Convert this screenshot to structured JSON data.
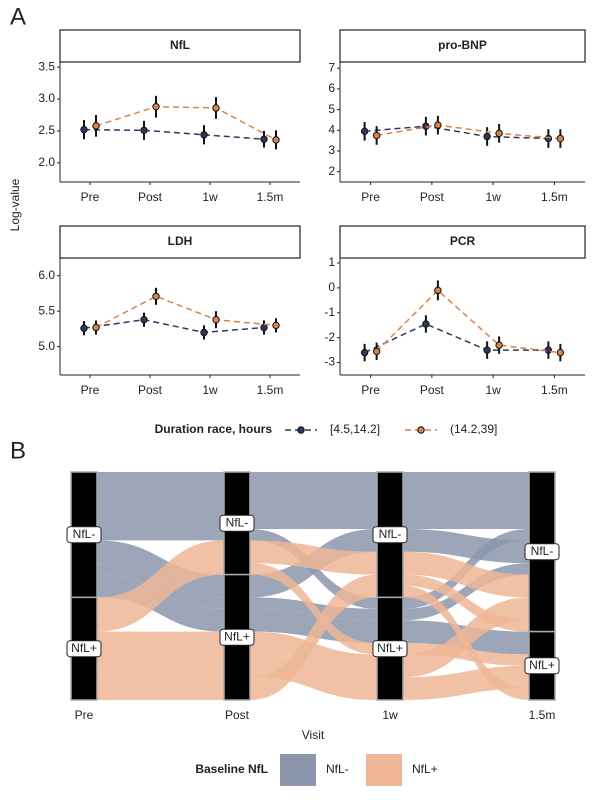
{
  "panel_labels": [
    "A",
    "B"
  ],
  "chart_data": [
    {
      "type": "facet-line",
      "y_label": "Log-value",
      "categories": [
        "Pre",
        "Post",
        "1w",
        "1.5m"
      ],
      "legend_title": "Duration race, hours",
      "series": [
        {
          "name": "[4.5,14.2]",
          "color": "#2b3a5c"
        },
        {
          "name": "(14.2,39]",
          "color": "#d9824a"
        }
      ],
      "facets": [
        {
          "title": "NfL",
          "ylim": [
            1.7,
            3.58
          ],
          "yticks": [
            {
              "value": 2,
              "label": "2.0"
            },
            2.5,
            {
              "value": 3,
              "label": "3.0"
            },
            3.5
          ],
          "values": [
            [
              2.52,
              2.51,
              2.44,
              2.37
            ],
            [
              2.58,
              2.88,
              2.86,
              2.36
            ]
          ],
          "errors": [
            [
              0.15,
              0.15,
              0.15,
              0.13
            ],
            [
              0.17,
              0.17,
              0.17,
              0.15
            ]
          ]
        },
        {
          "title": "pro-BNP",
          "ylim": [
            1.5,
            7.3
          ],
          "yticks": [
            2,
            3,
            4,
            5,
            6,
            7
          ],
          "values": [
            [
              3.95,
              4.2,
              3.7,
              3.6
            ],
            [
              3.75,
              4.25,
              3.85,
              3.6
            ]
          ],
          "errors": [
            [
              0.45,
              0.45,
              0.45,
              0.45
            ],
            [
              0.45,
              0.45,
              0.45,
              0.45
            ]
          ]
        },
        {
          "title": "LDH",
          "ylim": [
            4.6,
            6.25
          ],
          "yticks": [
            {
              "value": 5,
              "label": "5.0"
            },
            5.5,
            {
              "value": 6,
              "label": "6.0"
            }
          ],
          "values": [
            [
              5.26,
              5.38,
              5.2,
              5.27
            ],
            [
              5.27,
              5.71,
              5.38,
              5.3
            ]
          ],
          "errors": [
            [
              0.1,
              0.1,
              0.1,
              0.1
            ],
            [
              0.1,
              0.12,
              0.12,
              0.1
            ]
          ]
        },
        {
          "title": "PCR",
          "ylim": [
            -3.5,
            1.2
          ],
          "yticks": [
            -3,
            -2,
            -1,
            0,
            1
          ],
          "values": [
            [
              -2.6,
              -1.45,
              -2.5,
              -2.5
            ],
            [
              -2.55,
              -0.1,
              -2.3,
              -2.6
            ]
          ],
          "errors": [
            [
              0.35,
              0.35,
              0.35,
              0.35
            ],
            [
              0.35,
              0.4,
              0.35,
              0.35
            ]
          ]
        }
      ]
    },
    {
      "type": "alluvial",
      "x_label": "Visit",
      "categories": [
        "Pre",
        "Post",
        "1w",
        "1.5m"
      ],
      "strata": [
        "NfL-",
        "NfL+"
      ],
      "legend_title": "Baseline NfL",
      "groups": [
        {
          "name": "NfL-",
          "color": "#8c96ad"
        },
        {
          "name": "NfL+",
          "color": "#eeb696"
        }
      ],
      "alluvia": [
        {
          "group": 0,
          "path": [
            0,
            0,
            0,
            0
          ],
          "n": 5
        },
        {
          "group": 0,
          "path": [
            0,
            0,
            1,
            0
          ],
          "n": 1
        },
        {
          "group": 0,
          "path": [
            0,
            1,
            0,
            0
          ],
          "n": 2
        },
        {
          "group": 0,
          "path": [
            0,
            1,
            1,
            0
          ],
          "n": 1
        },
        {
          "group": 0,
          "path": [
            0,
            1,
            1,
            1
          ],
          "n": 2
        },
        {
          "group": 1,
          "path": [
            1,
            0,
            0,
            0
          ],
          "n": 2
        },
        {
          "group": 1,
          "path": [
            1,
            0,
            1,
            1
          ],
          "n": 1
        },
        {
          "group": 1,
          "path": [
            1,
            1,
            1,
            0
          ],
          "n": 2
        },
        {
          "group": 1,
          "path": [
            1,
            1,
            1,
            1
          ],
          "n": 2
        },
        {
          "group": 1,
          "path": [
            1,
            1,
            0,
            0
          ],
          "n": 1
        },
        {
          "group": 1,
          "path": [
            1,
            1,
            0,
            1
          ],
          "n": 1
        }
      ]
    }
  ]
}
